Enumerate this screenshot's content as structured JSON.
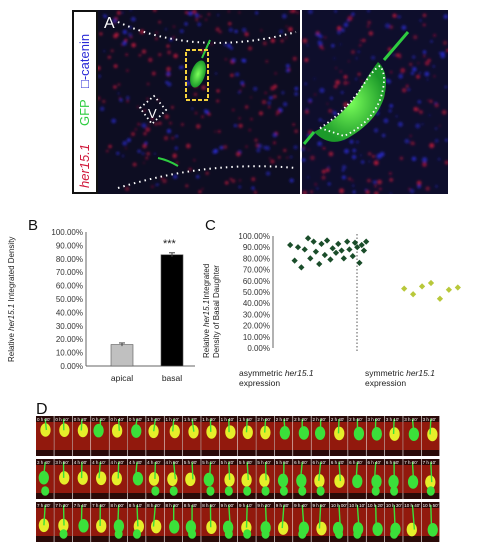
{
  "panel_letters": {
    "a": "A",
    "b": "B",
    "c": "C",
    "d": "D"
  },
  "panelA": {
    "stain_her": "her15.1",
    "stain_gfp": "GFP",
    "stain_catenin": "□-catenin",
    "ventricle_label": "V",
    "colors": {
      "her": "#d0183a",
      "gfp": "#2ecc40",
      "catenin": "#2a2ad6",
      "box": "#f5d23c",
      "dots": "#ffffff"
    }
  },
  "panelB": {
    "ylabel_prefix": "Relative ",
    "ylabel_italic": "her15.1",
    "ylabel_suffix": " Integrated Density",
    "significance": "***",
    "yticks": [
      "0.00%",
      "10.00%",
      "20.00%",
      "30.00%",
      "40.00%",
      "50.00%",
      "60.00%",
      "70.00%",
      "80.00%",
      "90.00%",
      "100.00%"
    ]
  },
  "panelC": {
    "ylabel_line1_prefix": "Relative ",
    "ylabel_line1_italic": "her15.1",
    "ylabel_line1_suffix": "Integrated",
    "ylabel_line2": "Density of Basal Daughter",
    "yticks": [
      "0.00%",
      "10.00%",
      "20.00%",
      "30.00%",
      "40.00%",
      "50.00%",
      "60.00%",
      "70.00%",
      "80.00%",
      "90.00%",
      "100.00%"
    ],
    "cat1_line1_prefix": "asymmetric ",
    "cat1_line1_italic": "her15.1",
    "cat1_line2": "expression",
    "cat2_line1_prefix": "symmetric ",
    "cat2_line1_italic": "her15.1",
    "cat2_line2": "expression"
  },
  "chart_data": [
    {
      "type": "bar",
      "categories": [
        "apical",
        "basal"
      ],
      "values": [
        0.16,
        0.83
      ],
      "errors": [
        0.012,
        0.015
      ],
      "colors": [
        "#c0c0c0",
        "#000000"
      ],
      "ylim": [
        0,
        1.0
      ],
      "ylabel": "Relative her15.1 Integrated Density",
      "annotation": "***"
    },
    {
      "type": "scatter",
      "ylim": [
        0,
        1.0
      ],
      "ylabel": "Relative her15.1 Integrated Density of Basal Daughter",
      "series": [
        {
          "color": "#1a4d2a",
          "points": [
            [
              0.1,
              0.92
            ],
            [
              0.14,
              0.78
            ],
            [
              0.17,
              0.9
            ],
            [
              0.2,
              0.72
            ],
            [
              0.23,
              0.88
            ],
            [
              0.26,
              0.98
            ],
            [
              0.28,
              0.8
            ],
            [
              0.31,
              0.95
            ],
            [
              0.33,
              0.86
            ],
            [
              0.36,
              0.75
            ],
            [
              0.38,
              0.93
            ],
            [
              0.41,
              0.83
            ],
            [
              0.43,
              0.96
            ],
            [
              0.46,
              0.79
            ],
            [
              0.48,
              0.89
            ],
            [
              0.51,
              0.85
            ],
            [
              0.53,
              0.93
            ],
            [
              0.56,
              0.87
            ],
            [
              0.58,
              0.8
            ],
            [
              0.61,
              0.95
            ],
            [
              0.63,
              0.88
            ],
            [
              0.66,
              0.82
            ],
            [
              0.68,
              0.94
            ],
            [
              0.7,
              0.9
            ],
            [
              0.72,
              0.76
            ],
            [
              0.74,
              0.92
            ],
            [
              0.76,
              0.87
            ],
            [
              0.78,
              0.95
            ]
          ]
        },
        {
          "color": "#b8c83a",
          "points": [
            [
              1.12,
              0.53
            ],
            [
              1.2,
              0.48
            ],
            [
              1.28,
              0.55
            ],
            [
              1.36,
              0.58
            ],
            [
              1.44,
              0.44
            ],
            [
              1.52,
              0.52
            ],
            [
              1.6,
              0.54
            ]
          ]
        }
      ],
      "xlim": [
        0,
        1.7
      ]
    }
  ],
  "panelD": {
    "rows": [
      [
        "0 h 00'",
        "0 h 10'",
        "0 h 20'",
        "0 h 30'",
        "0 h 40'",
        "0 h 50'",
        "1 h 00'",
        "1 h 10'",
        "1 h 20'",
        "1 h 30'",
        "1 h 40'",
        "1 h 50'",
        "2 h 00'",
        "2 h 10'",
        "2 h 20'",
        "2 h 30'",
        "2 h 40'",
        "2 h 50'",
        "3 h 00'",
        "3 h 10'",
        "3 h 20'",
        "3 h 30'"
      ],
      [
        "3 h 40'",
        "3 h 50'",
        "4 h 00'",
        "4 h 10'",
        "4 h 20'",
        "4 h 30'",
        "4 h 40'",
        "4 h 50'",
        "5 h 00'",
        "5 h 10'",
        "5 h 20'",
        "5 h 30'",
        "5 h 40'",
        "5 h 50'",
        "6 h 00'",
        "6 h 10'",
        "6 h 20'",
        "6 h 30'",
        "6 h 40'",
        "6 h 50'",
        "7 h 00'",
        "7 h 10'"
      ],
      [
        "7 h 20'",
        "7 h 30'",
        "7 h 40'",
        "7 h 50'",
        "8 h 00'",
        "8 h 10'",
        "8 h 20'",
        "8 h 30'",
        "8 h 40'",
        "8 h 50'",
        "9 h 00'",
        "9 h 10'",
        "9 h 20'",
        "9 h 30'",
        "9 h 40'",
        "9 h 50'",
        "10 h 00'",
        "10 h 10'",
        "10 h 20'",
        "10 h 30'",
        "10 h 40'",
        "10 h 50'"
      ]
    ]
  }
}
